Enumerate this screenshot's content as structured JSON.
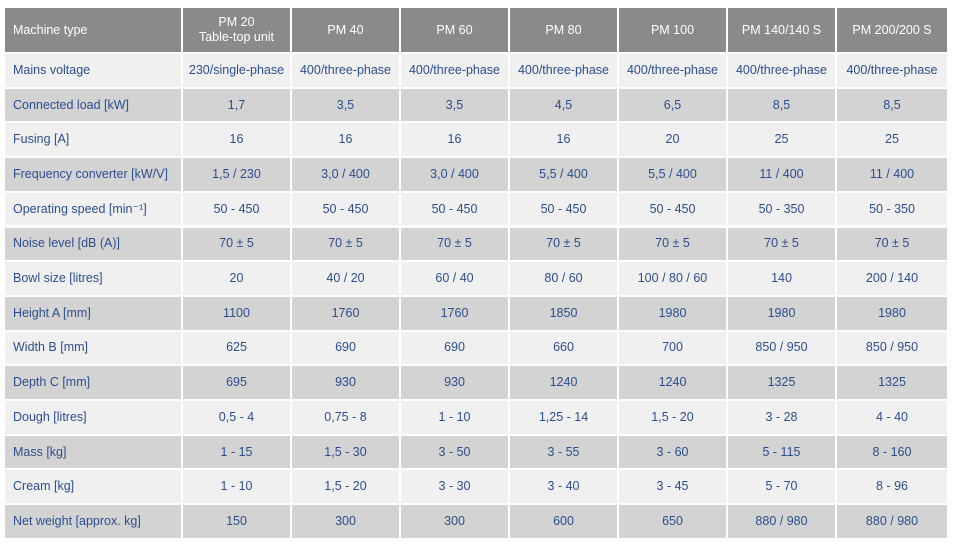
{
  "table": {
    "header": [
      "Machine type",
      [
        "PM 20",
        "Table-top unit"
      ],
      "PM 40",
      "PM 60",
      "PM 80",
      "PM 100",
      "PM 140/140 S",
      "PM 200/200 S"
    ],
    "rows": [
      [
        "Mains voltage",
        "230/single-phase",
        "400/three-phase",
        "400/three-phase",
        "400/three-phase",
        "400/three-phase",
        "400/three-phase",
        "400/three-phase"
      ],
      [
        "Connected load [kW]",
        "1,7",
        "3,5",
        "3,5",
        "4,5",
        "6,5",
        "8,5",
        "8,5"
      ],
      [
        "Fusing [A]",
        "16",
        "16",
        "16",
        "16",
        "20",
        "25",
        "25"
      ],
      [
        "Frequency converter [kW/V]",
        "1,5 / 230",
        "3,0 / 400",
        "3,0 / 400",
        "5,5 / 400",
        "5,5 / 400",
        "11 / 400",
        "11 / 400"
      ],
      [
        "Operating speed [min⁻¹]",
        "50 - 450",
        "50 - 450",
        "50 - 450",
        "50 - 450",
        "50 - 450",
        "50 - 350",
        "50 - 350"
      ],
      [
        "Noise level [dB (A)]",
        "70 ± 5",
        "70 ± 5",
        "70 ± 5",
        "70 ± 5",
        "70 ± 5",
        "70 ± 5",
        "70 ± 5"
      ],
      [
        "Bowl size [litres]",
        "20",
        "40 / 20",
        "60 / 40",
        "80 / 60",
        "100 / 80 / 60",
        "140",
        "200 / 140"
      ],
      [
        "Height A [mm]",
        "1100",
        "1760",
        "1760",
        "1850",
        "1980",
        "1980",
        "1980"
      ],
      [
        "Width B [mm]",
        "625",
        "690",
        "690",
        "660",
        "700",
        "850 / 950",
        "850 / 950"
      ],
      [
        "Depth C [mm]",
        "695",
        "930",
        "930",
        "1240",
        "1240",
        "1325",
        "1325"
      ],
      [
        "Dough [litres]",
        "0,5 - 4",
        "0,75 - 8",
        "1 - 10",
        "1,25 - 14",
        "1,5 - 20",
        "3 - 28",
        "4 - 40"
      ],
      [
        "Mass [kg]",
        "1 - 15",
        "1,5 - 30",
        "3 - 50",
        "3 - 55",
        "3 - 60",
        "5 - 115",
        "8 - 160"
      ],
      [
        "Cream [kg]",
        "1 - 10",
        "1,5 - 20",
        "3 - 30",
        "3 - 40",
        "3 - 45",
        "5 - 70",
        "8 - 96"
      ],
      [
        "Net weight [approx. kg]",
        "150",
        "300",
        "300",
        "600",
        "650",
        "880 / 980",
        "880 / 980"
      ]
    ]
  }
}
